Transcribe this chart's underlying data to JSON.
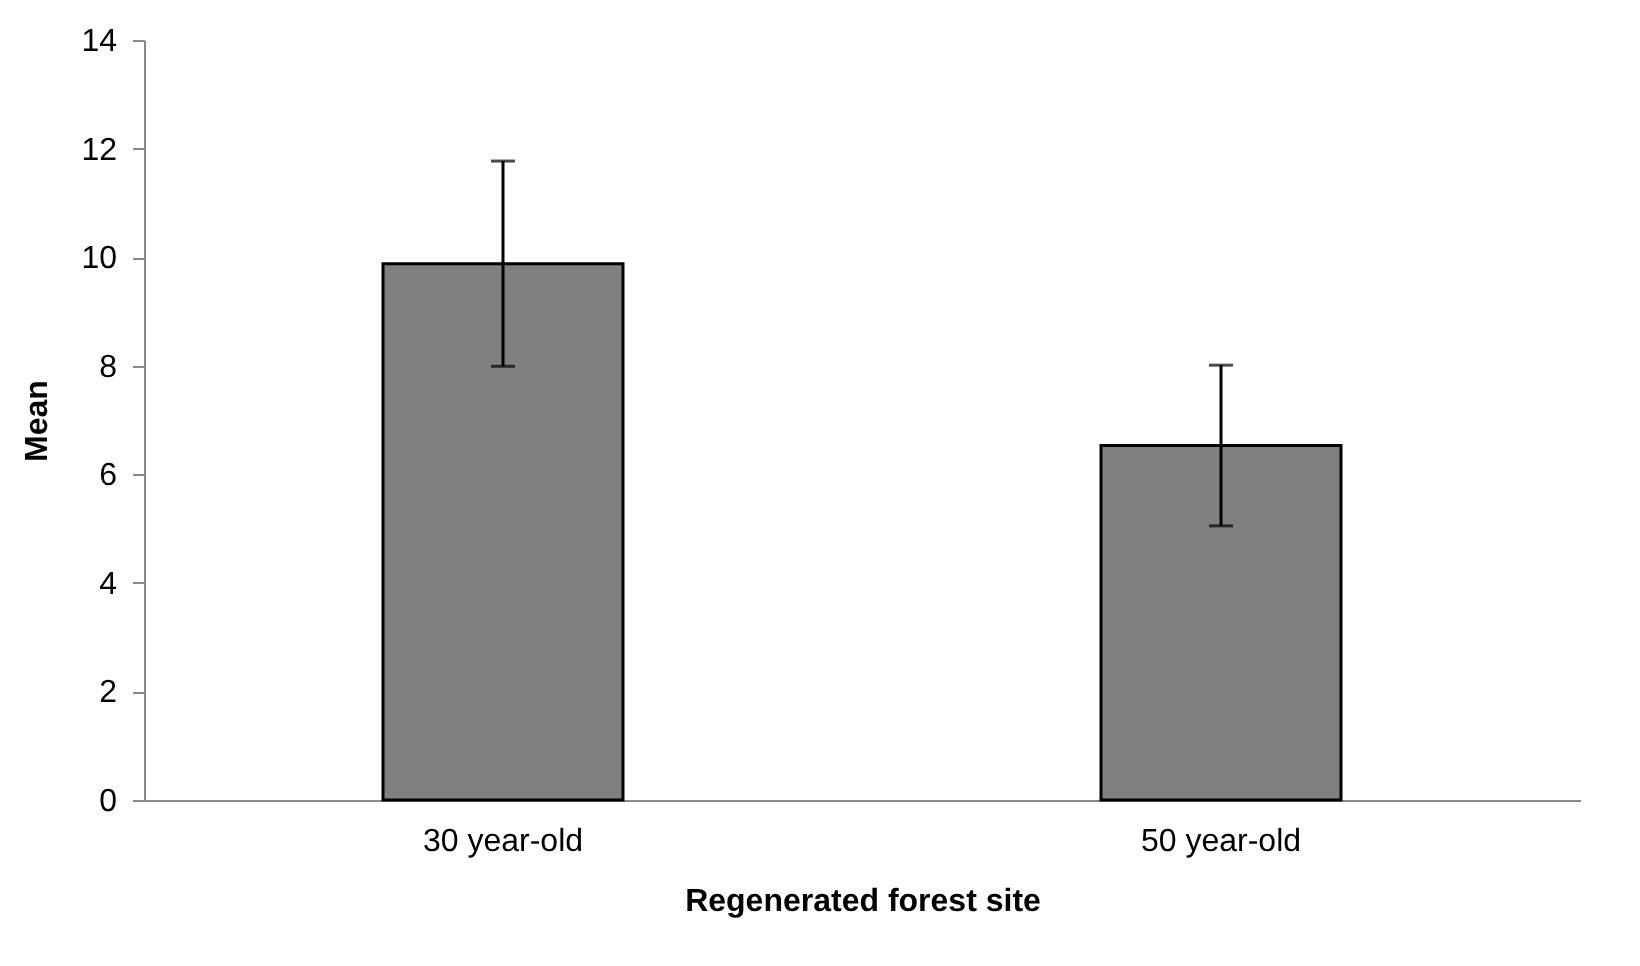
{
  "chart_data": {
    "type": "bar",
    "xlabel": "Regenerated forest site",
    "ylabel": "Mean",
    "categories": [
      "30 year-old",
      "50 year-old"
    ],
    "values": [
      9.88,
      6.53
    ],
    "errors": [
      1.89,
      1.48
    ],
    "color": "#808080",
    "ylim": [
      0,
      14
    ],
    "yticks": [
      0,
      2,
      4,
      6,
      8,
      10,
      12,
      14
    ],
    "grid": false
  }
}
